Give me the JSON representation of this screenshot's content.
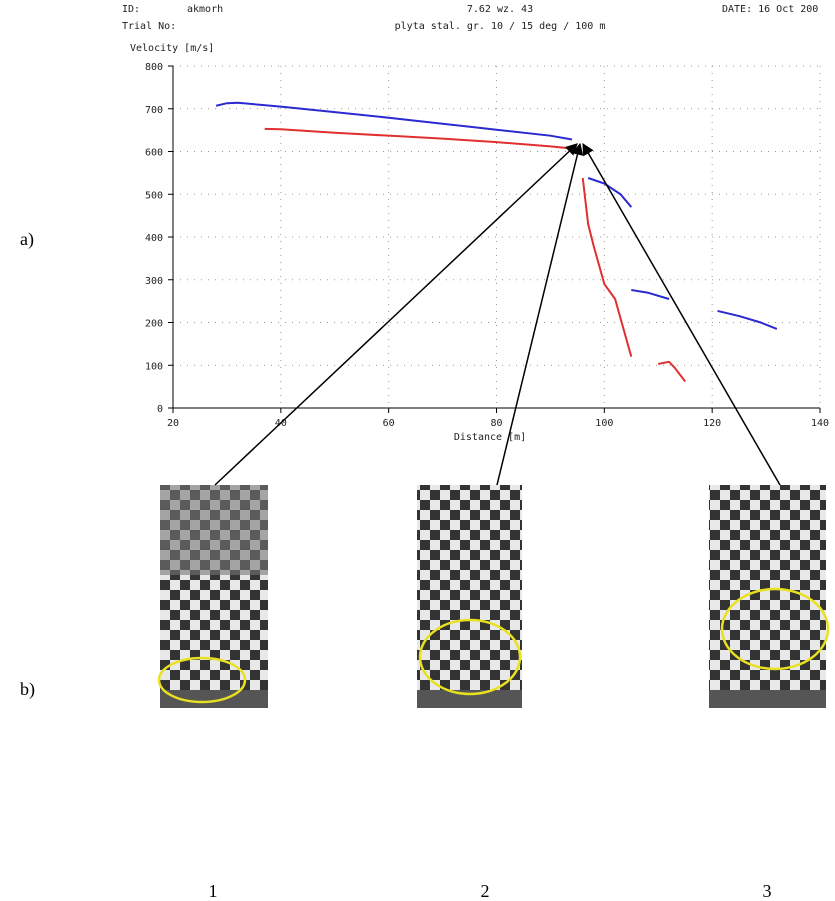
{
  "header": {
    "id_label": "ID:",
    "id_value": "akmorh",
    "trial_label": "Trial No:",
    "caliber": "7.62 wz. 43",
    "description": "plyta stal. gr. 10 / 15 deg / 100 m",
    "date": "DATE: 16 Oct 200"
  },
  "panel_labels": [
    "a)",
    "b)"
  ],
  "photo_labels": [
    "1",
    "2",
    "3"
  ],
  "chart_data": {
    "type": "line",
    "y_label": "Velocity [m/s]",
    "x_label": "Distance [m]",
    "xlim": [
      20,
      140
    ],
    "xticks": [
      20,
      40,
      60,
      80,
      100,
      120,
      140
    ],
    "ylim": [
      0,
      800
    ],
    "yticks": [
      0,
      100,
      200,
      300,
      400,
      500,
      600,
      700,
      800
    ],
    "grid": true,
    "series": [
      {
        "color": "#2a2ad0",
        "x": [
          28,
          30,
          32,
          40,
          50,
          60,
          70,
          80,
          90,
          94,
          null,
          97,
          100,
          103,
          105,
          null,
          105,
          108,
          112,
          null,
          121,
          125,
          129,
          132
        ],
        "values": [
          707,
          713,
          714,
          705,
          692,
          679,
          665,
          651,
          637,
          628,
          null,
          538,
          525,
          500,
          470,
          null,
          276,
          270,
          255,
          null,
          227,
          215,
          200,
          185
        ]
      },
      {
        "color": "#e03030",
        "x": [
          37,
          40,
          50,
          60,
          70,
          80,
          90,
          94,
          null,
          96,
          97,
          98,
          100,
          102,
          103,
          105,
          null,
          110,
          112,
          113,
          115
        ],
        "values": [
          653,
          652,
          644,
          637,
          630,
          622,
          612,
          607,
          null,
          538,
          430,
          380,
          290,
          255,
          210,
          120,
          null,
          103,
          108,
          95,
          62
        ]
      }
    ]
  }
}
